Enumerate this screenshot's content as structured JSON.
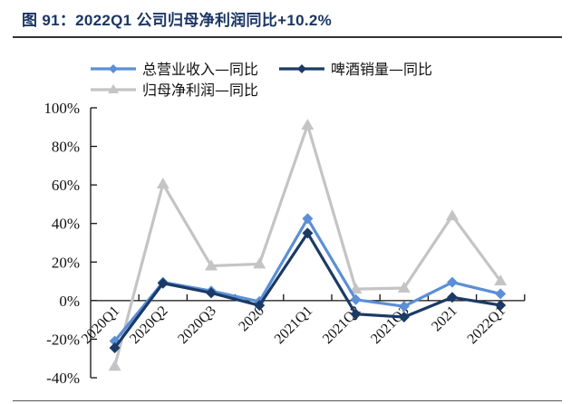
{
  "title": "图 91：2022Q1 公司归母净利润同比+10.2%",
  "legend": {
    "items": [
      {
        "label": "总营业收入—同比",
        "color": "#5b8fd6",
        "marker": "diamond"
      },
      {
        "label": "啤酒销量—同比",
        "color": "#1b3a66",
        "marker": "diamond"
      },
      {
        "label": "归母净利润—同比",
        "color": "#c4c4c4",
        "marker": "triangle"
      }
    ]
  },
  "y_axis": {
    "ticks": [
      "100%",
      "80%",
      "60%",
      "40%",
      "20%",
      "0%",
      "-20%",
      "-40%"
    ]
  },
  "x_axis": {
    "ticks": [
      "2020Q1",
      "2020Q2",
      "2020Q3",
      "2020",
      "2021Q1",
      "2021Q2",
      "2021Q3",
      "2021",
      "2022Q1"
    ]
  },
  "chart_data": {
    "type": "line",
    "title": "图 91：2022Q1 公司归母净利润同比+10.2%",
    "xlabel": "",
    "ylabel": "",
    "categories": [
      "2020Q1",
      "2020Q2",
      "2020Q3",
      "2020",
      "2021Q1",
      "2021Q2",
      "2021Q3",
      "2021",
      "2022Q1"
    ],
    "ylim": [
      -40,
      100
    ],
    "y_unit": "%",
    "grid": false,
    "legend_position": "top",
    "series": [
      {
        "name": "总营业收入—同比",
        "color": "#5b8fd6",
        "marker": "diamond",
        "values": [
          -21,
          9.5,
          5,
          -0.5,
          42.5,
          0.5,
          -3,
          9.5,
          3.5
        ]
      },
      {
        "name": "啤酒销量—同比",
        "color": "#1b3a66",
        "marker": "diamond",
        "values": [
          -24.5,
          9,
          4,
          -2.5,
          35,
          -7,
          -8.5,
          1.7,
          -2.4
        ]
      },
      {
        "name": "归母净利润—同比",
        "color": "#c4c4c4",
        "marker": "triangle",
        "values": [
          -34,
          60.5,
          18,
          19,
          91,
          6,
          6.5,
          44,
          10.2
        ]
      }
    ]
  }
}
